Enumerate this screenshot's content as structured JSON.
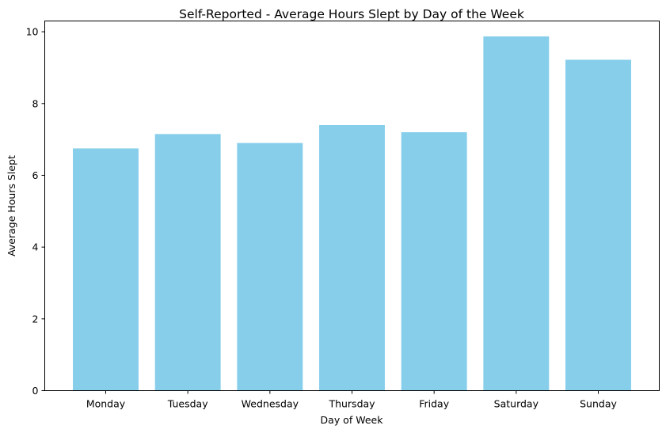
{
  "chart_data": {
    "type": "bar",
    "title": "Self-Reported - Average Hours Slept by Day of the Week",
    "xlabel": "Day of Week",
    "ylabel": "Average Hours Slept",
    "categories": [
      "Monday",
      "Tuesday",
      "Wednesday",
      "Thursday",
      "Friday",
      "Saturday",
      "Sunday"
    ],
    "values": [
      6.75,
      7.15,
      6.9,
      7.4,
      7.2,
      9.87,
      9.22
    ],
    "ylim": [
      0,
      10.3
    ],
    "yticks": [
      0,
      2,
      4,
      6,
      8,
      10
    ],
    "ytick_labels": [
      "0",
      "2",
      "4",
      "6",
      "8",
      "10"
    ],
    "bar_color": "#87ceeb",
    "grid": false,
    "legend": false
  }
}
